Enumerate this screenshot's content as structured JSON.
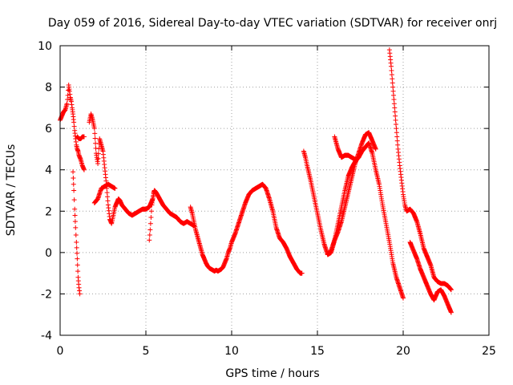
{
  "chart_data": {
    "type": "scatter",
    "title": "Day 059 of 2016, Sidereal Day-to-day VTEC variation (SDTVAR) for receiver onrj",
    "xlabel": "GPS time / hours",
    "ylabel": "SDTVAR / TECUs",
    "xlim": [
      0,
      25
    ],
    "ylim": [
      -4,
      10
    ],
    "xticks": [
      "0",
      "5",
      "10",
      "15",
      "20",
      "25"
    ],
    "yticks": [
      "-4",
      "-2",
      "0",
      "2",
      "4",
      "6",
      "8",
      "10"
    ],
    "grid": true,
    "marker": "+",
    "color": "#ff0000",
    "series": [
      {
        "name": "seg1",
        "x": [
          0.0,
          0.1,
          0.2,
          0.3,
          0.4,
          0.45,
          0.5,
          0.55,
          0.6,
          0.65,
          0.7,
          0.75,
          0.8,
          0.85,
          0.9,
          0.95,
          1.0,
          1.05,
          1.1,
          1.2,
          1.3,
          1.4
        ],
        "y": [
          6.4,
          6.6,
          6.8,
          6.9,
          7.2,
          7.6,
          8.1,
          7.8,
          7.5,
          7.3,
          7.0,
          6.7,
          6.3,
          5.9,
          5.5,
          5.2,
          5.0,
          4.9,
          4.7,
          4.5,
          4.2,
          4.0
        ]
      },
      {
        "name": "seg2",
        "x": [
          0.75,
          0.8,
          0.85,
          0.9,
          0.95,
          1.0,
          1.05,
          1.1,
          1.15
        ],
        "y": [
          3.9,
          3.0,
          2.1,
          1.2,
          0.5,
          -0.3,
          -1.2,
          -1.7,
          -2.0
        ]
      },
      {
        "name": "seg3",
        "x": [
          1.0,
          1.1,
          1.2,
          1.3,
          1.4
        ],
        "y": [
          5.6,
          5.5,
          5.5,
          5.6,
          5.6
        ]
      },
      {
        "name": "seg4",
        "x": [
          1.7,
          1.8,
          1.9,
          2.0,
          2.1,
          2.2,
          2.3,
          2.4,
          2.5,
          2.6,
          2.7,
          2.8,
          2.9,
          3.0,
          3.1,
          3.2,
          3.3,
          3.4,
          3.5,
          3.6
        ],
        "y": [
          6.3,
          6.7,
          6.4,
          6.0,
          4.8,
          4.3,
          5.5,
          5.2,
          4.9,
          4.1,
          3.3,
          2.3,
          1.6,
          1.4,
          1.8,
          2.2,
          2.4,
          2.6,
          2.5,
          2.3
        ]
      },
      {
        "name": "seg5",
        "x": [
          2.0,
          2.2,
          2.4,
          2.6,
          2.8,
          3.0,
          3.2
        ],
        "y": [
          2.4,
          2.6,
          3.1,
          3.2,
          3.3,
          3.2,
          3.1
        ]
      },
      {
        "name": "seg6",
        "x": [
          3.6,
          3.8,
          4.0,
          4.2,
          4.4,
          4.6,
          4.8,
          5.0,
          5.2,
          5.4,
          5.5,
          5.6,
          5.8,
          6.0,
          6.2,
          6.4,
          6.6,
          6.8,
          7.0,
          7.2,
          7.4,
          7.6,
          7.8
        ],
        "y": [
          2.3,
          2.1,
          1.9,
          1.8,
          1.9,
          2.0,
          2.1,
          2.1,
          2.2,
          2.6,
          3.0,
          2.9,
          2.6,
          2.3,
          2.1,
          1.9,
          1.8,
          1.7,
          1.5,
          1.4,
          1.5,
          1.4,
          1.3
        ]
      },
      {
        "name": "seg7",
        "x": [
          5.2,
          5.25,
          5.3,
          5.35,
          5.4,
          5.45,
          5.5
        ],
        "y": [
          0.6,
          1.1,
          1.7,
          2.3,
          2.6,
          2.9,
          3.0
        ]
      },
      {
        "name": "seg8",
        "x": [
          7.6,
          7.7,
          7.8,
          7.9,
          8.0,
          8.1,
          8.2,
          8.3,
          8.4,
          8.5,
          8.6,
          8.7,
          8.8,
          8.9,
          9.0,
          9.1,
          9.2,
          9.3,
          9.4,
          9.5,
          9.6,
          9.7,
          9.8,
          9.9,
          10.0
        ],
        "y": [
          2.2,
          1.9,
          1.5,
          1.1,
          0.8,
          0.5,
          0.2,
          -0.1,
          -0.3,
          -0.5,
          -0.65,
          -0.75,
          -0.8,
          -0.85,
          -0.9,
          -0.85,
          -0.9,
          -0.85,
          -0.8,
          -0.7,
          -0.5,
          -0.3,
          0.0,
          0.2,
          0.5
        ]
      },
      {
        "name": "seg9",
        "x": [
          10.0,
          10.2,
          10.4,
          10.6,
          10.8,
          11.0,
          11.2,
          11.4,
          11.6,
          11.8,
          12.0,
          12.2,
          12.4,
          12.6,
          12.8,
          13.0,
          13.2,
          13.4,
          13.6,
          13.8,
          14.0,
          14.1
        ],
        "y": [
          0.5,
          0.9,
          1.4,
          1.9,
          2.4,
          2.8,
          3.0,
          3.1,
          3.2,
          3.3,
          3.1,
          2.6,
          2.0,
          1.2,
          0.7,
          0.5,
          0.2,
          -0.2,
          -0.5,
          -0.8,
          -1.0,
          -1.0
        ]
      },
      {
        "name": "seg10",
        "x": [
          14.2,
          14.3,
          14.4,
          14.6,
          14.8,
          15.0,
          15.2,
          15.4,
          15.6,
          15.8,
          16.0,
          16.2,
          16.4,
          16.6,
          16.8,
          17.0,
          17.2,
          17.4,
          17.6,
          17.8,
          18.0,
          18.2,
          18.4,
          18.6,
          18.8,
          19.0,
          19.2,
          19.4,
          19.6,
          19.8,
          20.0
        ],
        "y": [
          4.9,
          4.6,
          4.2,
          3.5,
          2.7,
          1.9,
          1.1,
          0.4,
          -0.1,
          0.0,
          0.6,
          1.4,
          2.2,
          3.0,
          3.7,
          4.1,
          4.4,
          4.6,
          4.9,
          5.1,
          5.3,
          4.8,
          4.0,
          3.3,
          2.3,
          1.4,
          0.5,
          -0.5,
          -1.2,
          -1.7,
          -2.2
        ]
      },
      {
        "name": "seg11",
        "x": [
          15.6,
          15.8,
          16.0,
          16.2,
          16.4,
          16.6,
          16.8,
          17.0,
          17.2,
          17.4,
          17.6,
          17.8,
          18.0,
          18.2,
          18.4
        ],
        "y": [
          -0.1,
          0.1,
          0.6,
          1.0,
          1.5,
          2.2,
          2.9,
          3.6,
          4.3,
          4.8,
          5.3,
          5.7,
          5.8,
          5.4,
          5.0
        ]
      },
      {
        "name": "seg12",
        "x": [
          16.0,
          16.2,
          16.4,
          16.6,
          16.8,
          17.0,
          17.2,
          17.4
        ],
        "y": [
          5.6,
          5.0,
          4.6,
          4.7,
          4.7,
          4.6,
          4.5,
          4.6
        ]
      },
      {
        "name": "seg13",
        "x": [
          19.2,
          19.3,
          19.4,
          19.5,
          19.6,
          19.7,
          19.8,
          19.9,
          20.0,
          20.1,
          20.2,
          20.4,
          20.6,
          20.8,
          21.0,
          21.2,
          21.4,
          21.6,
          21.8,
          22.0,
          22.2,
          22.4,
          22.6,
          22.8
        ],
        "y": [
          9.8,
          9.0,
          8.0,
          7.0,
          6.0,
          5.0,
          4.2,
          3.5,
          2.8,
          2.3,
          2.0,
          2.1,
          1.9,
          1.5,
          0.9,
          0.2,
          -0.2,
          -0.6,
          -1.2,
          -1.4,
          -1.5,
          -1.5,
          -1.6,
          -1.8
        ]
      },
      {
        "name": "seg14",
        "x": [
          20.4,
          20.6,
          20.8,
          21.0,
          21.2,
          21.4,
          21.6,
          21.8,
          22.0,
          22.2,
          22.4,
          22.6,
          22.8
        ],
        "y": [
          0.5,
          0.1,
          -0.3,
          -0.8,
          -1.2,
          -1.6,
          -2.0,
          -2.3,
          -1.9,
          -1.8,
          -2.1,
          -2.5,
          -2.9
        ]
      }
    ]
  }
}
